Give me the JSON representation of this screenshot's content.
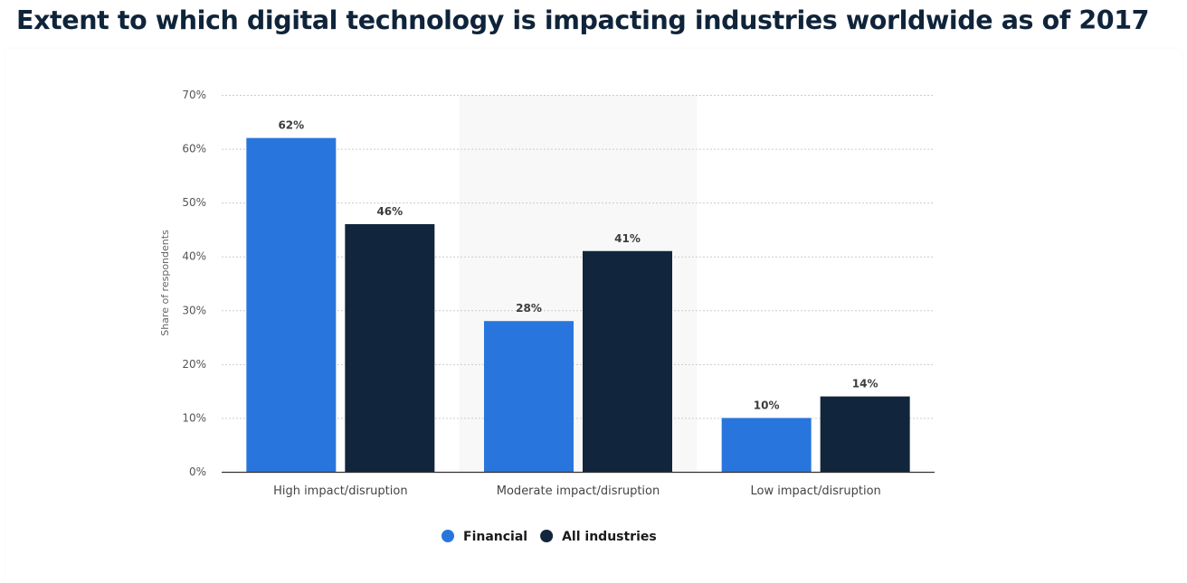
{
  "page": {
    "title": "Extent to which digital technology is impacting industries worldwide as of 2017"
  },
  "chart_data": {
    "type": "bar",
    "title": "Extent to which digital technology is impacting industries worldwide as of 2017",
    "xlabel": "",
    "ylabel": "Share of respondents",
    "ylim": [
      0,
      70
    ],
    "yticks": [
      0,
      10,
      20,
      30,
      40,
      50,
      60,
      70
    ],
    "ytick_labels": [
      "0%",
      "10%",
      "20%",
      "30%",
      "40%",
      "50%",
      "60%",
      "70%"
    ],
    "grid": true,
    "categories": [
      "High impact/disruption",
      "Moderate impact/disruption",
      "Low impact/disruption"
    ],
    "highlighted_category": "Moderate impact/disruption",
    "series": [
      {
        "name": "Financial",
        "color": "#2876dd",
        "values": [
          62,
          28,
          10
        ],
        "labels": [
          "62%",
          "28%",
          "10%"
        ]
      },
      {
        "name": "All industries",
        "color": "#11263c",
        "values": [
          46,
          41,
          14
        ],
        "labels": [
          "46%",
          "41%",
          "14%"
        ]
      }
    ],
    "legend": {
      "position": "bottom-center"
    }
  }
}
